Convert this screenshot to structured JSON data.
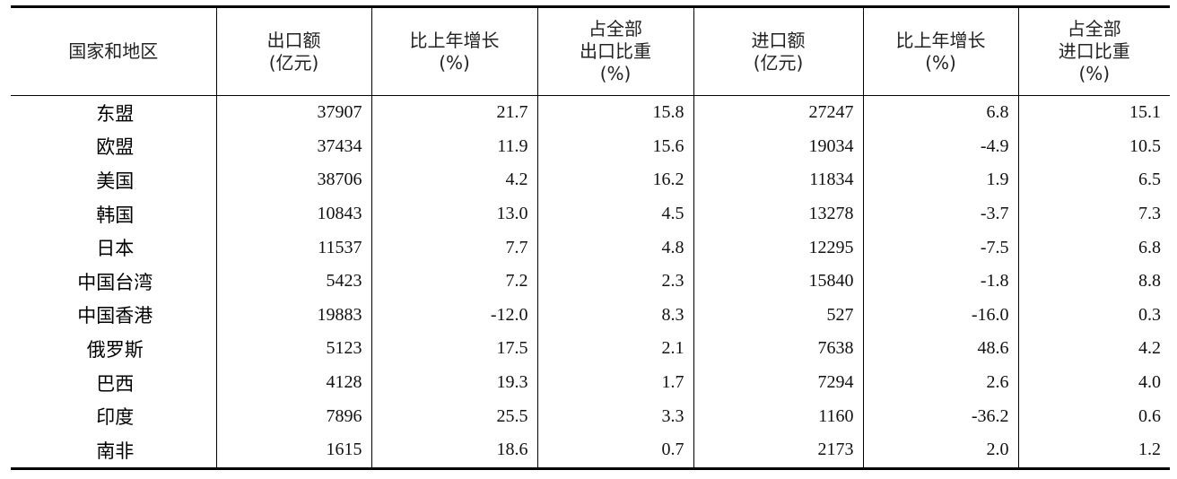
{
  "headers": [
    [
      "国家和地区"
    ],
    [
      "出口额",
      "(亿元)"
    ],
    [
      "比上年增长",
      "(%)"
    ],
    [
      "占全部",
      "出口比重",
      "(%)"
    ],
    [
      "进口额",
      "(亿元)"
    ],
    [
      "比上年增长",
      "(%)"
    ],
    [
      "占全部",
      "进口比重",
      "(%)"
    ]
  ],
  "rows": [
    [
      "东盟",
      "37907",
      "21.7",
      "15.8",
      "27247",
      "6.8",
      "15.1"
    ],
    [
      "欧盟",
      "37434",
      "11.9",
      "15.6",
      "19034",
      "-4.9",
      "10.5"
    ],
    [
      "美国",
      "38706",
      "4.2",
      "16.2",
      "11834",
      "1.9",
      "6.5"
    ],
    [
      "韩国",
      "10843",
      "13.0",
      "4.5",
      "13278",
      "-3.7",
      "7.3"
    ],
    [
      "日本",
      "11537",
      "7.7",
      "4.8",
      "12295",
      "-7.5",
      "6.8"
    ],
    [
      "中国台湾",
      "5423",
      "7.2",
      "2.3",
      "15840",
      "-1.8",
      "8.8"
    ],
    [
      "中国香港",
      "19883",
      "-12.0",
      "8.3",
      "527",
      "-16.0",
      "0.3"
    ],
    [
      "俄罗斯",
      "5123",
      "17.5",
      "2.1",
      "7638",
      "48.6",
      "4.2"
    ],
    [
      "巴西",
      "4128",
      "19.3",
      "1.7",
      "7294",
      "2.6",
      "4.0"
    ],
    [
      "印度",
      "7896",
      "25.5",
      "3.3",
      "1160",
      "-36.2",
      "0.6"
    ],
    [
      "南非",
      "1615",
      "18.6",
      "0.7",
      "2173",
      "2.0",
      "1.2"
    ]
  ]
}
